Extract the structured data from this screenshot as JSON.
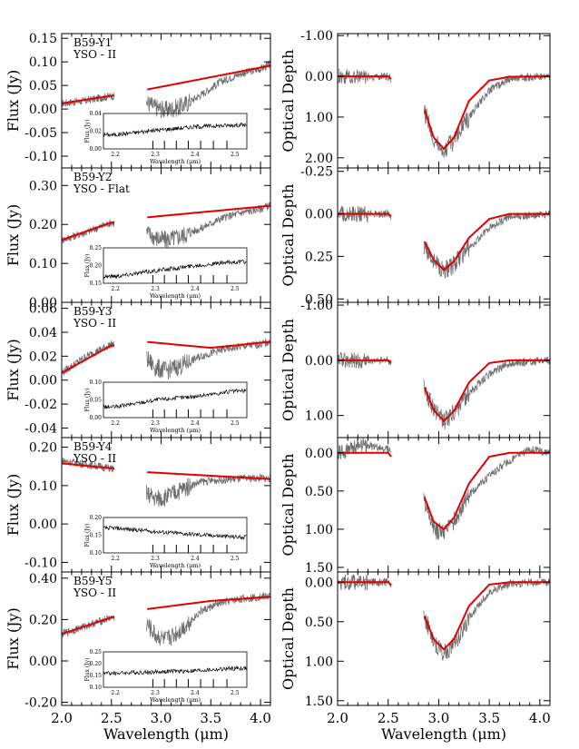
{
  "figure": {
    "xlabel": "Wavelength  (μm)",
    "left_ylabel": "Flux (Jy)",
    "right_ylabel": "Optical Depth",
    "inset_xlabel": "Wavelength (μm)",
    "inset_ylabel": "Flux (Jy)",
    "x_ticks": [
      "2.0",
      "2.5",
      "3.0",
      "3.5",
      "4.0"
    ],
    "inset_x_ticks": [
      "2.2",
      "2.3",
      "2.4",
      "2.5"
    ],
    "colors": {
      "data": "#6e6e6e",
      "model": "#e00000",
      "axes": "#000000"
    }
  },
  "chart_data": [
    {
      "panel": "flux",
      "source": "B59-Y1",
      "class": "YSO - II",
      "type": "line",
      "xlim": [
        2.0,
        4.1
      ],
      "ylim": [
        -0.125,
        0.16
      ],
      "yticks": [
        "0.15",
        "0.10",
        "0.05",
        "0.00",
        "-0.05",
        "-0.10"
      ],
      "model": {
        "x": [
          2.0,
          2.5,
          2.85,
          4.1
        ],
        "y": [
          0.012,
          0.028,
          0.041,
          0.092
        ]
      },
      "data": {
        "x": [
          2.0,
          2.25,
          2.5,
          2.85,
          2.95,
          3.05,
          3.2,
          3.4,
          3.6,
          3.8,
          4.0,
          4.1
        ],
        "y": [
          0.012,
          0.018,
          0.028,
          0.015,
          0.003,
          -0.002,
          0.005,
          0.03,
          0.058,
          0.075,
          0.085,
          0.095
        ]
      },
      "inset": {
        "ylim": [
          0.0,
          0.04
        ],
        "yticks": [
          "0.04",
          "0.02",
          "0.00"
        ],
        "x": [
          2.2,
          2.3,
          2.4,
          2.5
        ],
        "y": [
          0.016,
          0.021,
          0.025,
          0.027
        ]
      }
    },
    {
      "panel": "flux",
      "source": "B59-Y2",
      "class": "YSO - Flat",
      "type": "line",
      "xlim": [
        2.0,
        4.1
      ],
      "ylim": [
        0.0,
        0.345
      ],
      "yticks": [
        "0.30",
        "0.20",
        "0.10",
        "0.00"
      ],
      "model": {
        "x": [
          2.0,
          2.5,
          2.85,
          4.1
        ],
        "y": [
          0.16,
          0.205,
          0.218,
          0.248
        ]
      },
      "data": {
        "x": [
          2.0,
          2.25,
          2.5,
          2.85,
          2.95,
          3.05,
          3.2,
          3.4,
          3.6,
          3.8,
          4.0,
          4.1
        ],
        "y": [
          0.16,
          0.18,
          0.205,
          0.18,
          0.165,
          0.16,
          0.17,
          0.19,
          0.215,
          0.23,
          0.24,
          0.25
        ]
      },
      "inset": {
        "ylim": [
          0.15,
          0.25
        ],
        "yticks": [
          "0.25",
          "0.20",
          "0.15"
        ],
        "x": [
          2.2,
          2.3,
          2.4,
          2.5
        ],
        "y": [
          0.17,
          0.185,
          0.2,
          0.21
        ]
      }
    },
    {
      "panel": "flux",
      "source": "B59-Y3",
      "class": "YSO - II",
      "type": "line",
      "xlim": [
        2.0,
        4.1
      ],
      "ylim": [
        -0.048,
        0.065
      ],
      "yticks": [
        "0.06",
        "0.04",
        "0.02",
        "0.00",
        "-0.02",
        "-0.04"
      ],
      "model": {
        "x": [
          2.0,
          2.5,
          2.85,
          3.5,
          4.1
        ],
        "y": [
          0.006,
          0.029,
          0.032,
          0.027,
          0.032
        ]
      },
      "data": {
        "x": [
          2.0,
          2.25,
          2.5,
          2.85,
          2.95,
          3.05,
          3.2,
          3.4,
          3.6,
          3.8,
          4.0,
          4.1
        ],
        "y": [
          0.006,
          0.02,
          0.03,
          0.018,
          0.01,
          0.008,
          0.012,
          0.02,
          0.025,
          0.028,
          0.03,
          0.032
        ]
      },
      "inset": {
        "ylim": [
          0.0,
          0.1
        ],
        "yticks": [
          "0.10",
          "0.05",
          "0.00"
        ],
        "x": [
          2.2,
          2.3,
          2.4,
          2.5
        ],
        "y": [
          0.03,
          0.05,
          0.06,
          0.075
        ]
      }
    },
    {
      "panel": "flux",
      "source": "B59-Y4",
      "class": "YSO - II",
      "type": "line",
      "xlim": [
        2.0,
        4.1
      ],
      "ylim": [
        -0.125,
        0.225
      ],
      "yticks": [
        "0.20",
        "0.10",
        "0.00",
        "-0.10"
      ],
      "model": {
        "x": [
          2.0,
          2.5,
          2.85,
          4.1
        ],
        "y": [
          0.158,
          0.145,
          0.135,
          0.117
        ]
      },
      "data": {
        "x": [
          2.0,
          2.25,
          2.5,
          2.85,
          2.95,
          3.05,
          3.2,
          3.4,
          3.6,
          3.8,
          4.0,
          4.1
        ],
        "y": [
          0.165,
          0.155,
          0.145,
          0.08,
          0.065,
          0.07,
          0.09,
          0.11,
          0.115,
          0.118,
          0.12,
          0.118
        ]
      },
      "inset": {
        "ylim": [
          0.1,
          0.2
        ],
        "yticks": [
          "0.20",
          "0.15",
          "0.10"
        ],
        "x": [
          2.2,
          2.3,
          2.4,
          2.5
        ],
        "y": [
          0.17,
          0.16,
          0.152,
          0.145
        ]
      }
    },
    {
      "panel": "flux",
      "source": "B59-Y5",
      "class": "YSO - II",
      "type": "line",
      "xlim": [
        2.0,
        4.1
      ],
      "ylim": [
        -0.215,
        0.43
      ],
      "yticks": [
        "0.40",
        "0.20",
        "0.00",
        "-0.20"
      ],
      "model": {
        "x": [
          2.0,
          2.5,
          2.85,
          3.5,
          4.1
        ],
        "y": [
          0.13,
          0.21,
          0.25,
          0.29,
          0.31
        ]
      },
      "data": {
        "x": [
          2.0,
          2.25,
          2.5,
          2.85,
          2.95,
          3.05,
          3.2,
          3.4,
          3.6,
          3.8,
          4.0,
          4.1
        ],
        "y": [
          0.13,
          0.17,
          0.21,
          0.18,
          0.12,
          0.1,
          0.15,
          0.24,
          0.28,
          0.3,
          0.31,
          0.315
        ]
      },
      "inset": {
        "ylim": [
          0.1,
          0.25
        ],
        "yticks": [
          "0.25",
          "0.20",
          "0.15",
          "0.10"
        ],
        "x": [
          2.2,
          2.3,
          2.4,
          2.5
        ],
        "y": [
          0.16,
          0.165,
          0.17,
          0.18
        ]
      }
    },
    {
      "panel": "optical_depth",
      "source": "B59-Y1",
      "type": "line",
      "xlim": [
        2.0,
        4.1
      ],
      "ylim": [
        -1.05,
        2.25
      ],
      "inverted": true,
      "yticks": [
        "-1.00",
        "0.00",
        "1.00",
        "2.00"
      ],
      "model": {
        "x": [
          2.0,
          2.5,
          2.85,
          2.95,
          3.05,
          3.15,
          3.3,
          3.5,
          3.7,
          4.1
        ],
        "y": [
          0.0,
          0.0,
          0.75,
          1.5,
          1.78,
          1.5,
          0.6,
          0.1,
          0.01,
          0.0
        ]
      },
      "data": {
        "x": [
          2.0,
          2.25,
          2.5,
          2.85,
          2.95,
          3.05,
          3.15,
          3.3,
          3.5,
          3.7,
          4.1
        ],
        "y": [
          0.0,
          0.0,
          0.0,
          0.8,
          1.5,
          1.8,
          1.6,
          1.0,
          0.35,
          0.05,
          0.0
        ]
      }
    },
    {
      "panel": "optical_depth",
      "source": "B59-Y2",
      "type": "line",
      "xlim": [
        2.0,
        4.1
      ],
      "ylim": [
        -0.27,
        0.52
      ],
      "inverted": true,
      "yticks": [
        "-0.25",
        "0.00",
        "0.25",
        "0.50"
      ],
      "model": {
        "x": [
          2.0,
          2.5,
          2.85,
          2.95,
          3.05,
          3.15,
          3.3,
          3.5,
          3.7,
          4.1
        ],
        "y": [
          0.0,
          0.0,
          0.15,
          0.27,
          0.33,
          0.28,
          0.14,
          0.03,
          0.0,
          0.0
        ]
      },
      "data": {
        "x": [
          2.0,
          2.25,
          2.5,
          2.85,
          2.95,
          3.05,
          3.15,
          3.3,
          3.5,
          3.7,
          4.1
        ],
        "y": [
          0.0,
          0.0,
          0.0,
          0.18,
          0.28,
          0.33,
          0.3,
          0.2,
          0.08,
          0.02,
          0.0
        ]
      }
    },
    {
      "panel": "optical_depth",
      "source": "B59-Y3",
      "type": "line",
      "xlim": [
        2.0,
        4.1
      ],
      "ylim": [
        -1.05,
        1.4
      ],
      "inverted": true,
      "yticks": [
        "-1.00",
        "0.00",
        "1.00"
      ],
      "model": {
        "x": [
          2.0,
          2.5,
          2.85,
          2.95,
          3.05,
          3.15,
          3.3,
          3.5,
          3.7,
          4.1
        ],
        "y": [
          0.0,
          0.0,
          0.45,
          0.9,
          1.1,
          0.92,
          0.4,
          0.05,
          0.0,
          0.0
        ]
      },
      "data": {
        "x": [
          2.0,
          2.25,
          2.5,
          2.85,
          2.95,
          3.05,
          3.15,
          3.3,
          3.5,
          3.7,
          4.1
        ],
        "y": [
          0.0,
          0.0,
          0.0,
          0.5,
          0.9,
          1.1,
          0.95,
          0.6,
          0.25,
          0.05,
          0.0
        ]
      }
    },
    {
      "panel": "optical_depth",
      "source": "B59-Y4",
      "type": "line",
      "xlim": [
        2.0,
        4.1
      ],
      "ylim": [
        -0.2,
        1.56
      ],
      "inverted": true,
      "yticks": [
        "0.00",
        "0.50",
        "1.00",
        "1.50"
      ],
      "model": {
        "x": [
          2.0,
          2.5,
          2.85,
          2.95,
          3.05,
          3.15,
          3.3,
          3.5,
          3.7,
          4.1
        ],
        "y": [
          0.0,
          0.0,
          0.55,
          0.9,
          1.0,
          0.85,
          0.4,
          0.05,
          0.0,
          0.0
        ]
      },
      "data": {
        "x": [
          2.0,
          2.25,
          2.5,
          2.85,
          2.95,
          3.05,
          3.15,
          3.3,
          3.5,
          3.7,
          3.9,
          4.1
        ],
        "y": [
          0.0,
          -0.1,
          -0.05,
          0.6,
          1.0,
          1.05,
          0.9,
          0.55,
          0.3,
          0.1,
          -0.05,
          0.0
        ]
      }
    },
    {
      "panel": "optical_depth",
      "source": "B59-Y5",
      "type": "line",
      "xlim": [
        2.0,
        4.1
      ],
      "ylim": [
        -0.13,
        1.56
      ],
      "inverted": true,
      "yticks": [
        "0.00",
        "0.50",
        "1.00",
        "1.50"
      ],
      "model": {
        "x": [
          2.0,
          2.5,
          2.85,
          2.95,
          3.05,
          3.15,
          3.3,
          3.5,
          3.7,
          4.1
        ],
        "y": [
          0.0,
          0.0,
          0.4,
          0.72,
          0.85,
          0.72,
          0.3,
          0.03,
          0.0,
          0.0
        ]
      },
      "data": {
        "x": [
          2.0,
          2.25,
          2.5,
          2.85,
          2.95,
          3.05,
          3.15,
          3.3,
          3.5,
          3.7,
          4.1
        ],
        "y": [
          0.0,
          0.0,
          0.0,
          0.4,
          0.75,
          0.9,
          0.8,
          0.45,
          0.12,
          0.02,
          0.0
        ]
      }
    }
  ]
}
